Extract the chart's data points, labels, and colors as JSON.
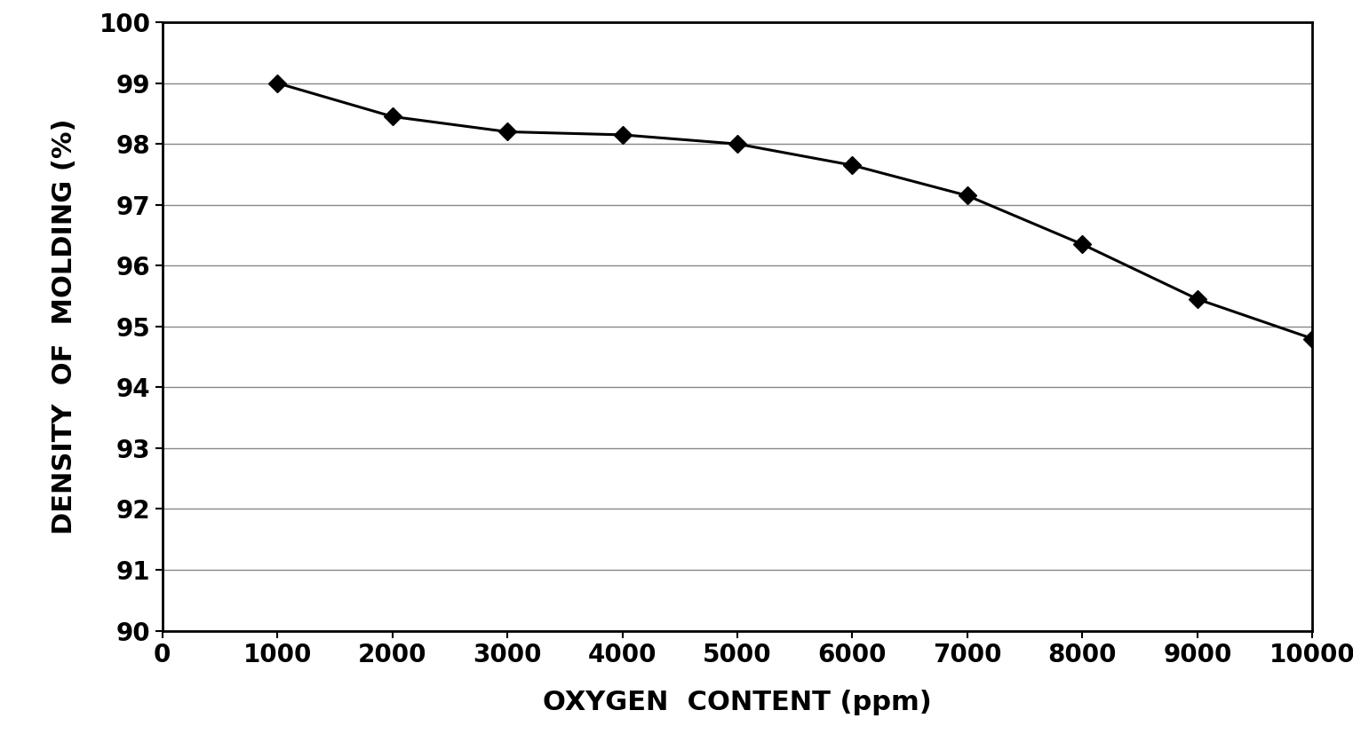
{
  "x": [
    1000,
    2000,
    3000,
    4000,
    5000,
    6000,
    7000,
    8000,
    9000,
    10000
  ],
  "y": [
    99.0,
    98.45,
    98.2,
    98.15,
    98.0,
    97.65,
    97.15,
    96.35,
    95.45,
    94.8
  ],
  "xlabel": "OXYGEN  CONTENT (ppm)",
  "ylabel": "DENSITY  OF  MOLDING (%)",
  "xlim": [
    0,
    10000
  ],
  "ylim": [
    90,
    100
  ],
  "yticks": [
    90,
    91,
    92,
    93,
    94,
    95,
    96,
    97,
    98,
    99,
    100
  ],
  "xticks": [
    0,
    1000,
    2000,
    3000,
    4000,
    5000,
    6000,
    7000,
    8000,
    9000,
    10000
  ],
  "xtick_labels": [
    "0",
    "1000",
    "2000",
    "3000",
    "4000",
    "5000",
    "6000",
    "7000",
    "8000",
    "9000",
    "10000"
  ],
  "line_color": "#000000",
  "marker": "D",
  "marker_color": "#000000",
  "marker_size": 10,
  "line_width": 2.2,
  "background_color": "#ffffff",
  "grid_color": "#888888",
  "xlabel_fontsize": 22,
  "ylabel_fontsize": 22,
  "tick_fontsize": 20
}
